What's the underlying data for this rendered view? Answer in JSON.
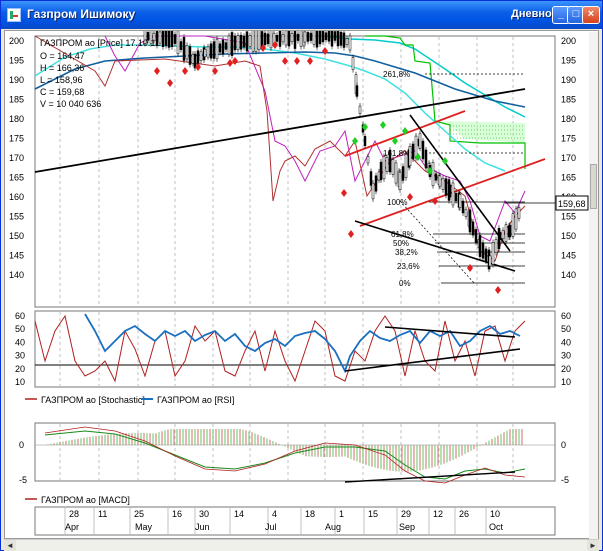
{
  "window": {
    "title": "Газпром Ишимоку",
    "period": "Дневной",
    "minimize_glyph": "_",
    "maximize_glyph": "□",
    "close_glyph": "×"
  },
  "ohlc": {
    "header": "ГАЗПРОМ ао [Price] 17.10.11",
    "open": "O = 164,47",
    "high": "H = 166,36",
    "low": "L = 158,96",
    "close": "C = 159,68",
    "volume": "V = 10 040 636"
  },
  "fib_labels": [
    "261,8%",
    "161,8%",
    "100%",
    "61,8%",
    "50%",
    "38,2%",
    "23,6%",
    "0%"
  ],
  "last_price": "159,68",
  "legend": {
    "stochastic": "ГАЗПРОМ ао [Stochastic]",
    "rsi": "ГАЗПРОМ ао [RSI]",
    "macd": "ГАЗПРОМ ао [MACD]"
  },
  "colors": {
    "stochastic": "#b02020",
    "rsi": "#1a6fc0",
    "macd_signal": "#1a8a1a",
    "fib_upper": "#00b000",
    "trend_red": "#e02020",
    "candle": "#000000",
    "cloud_green": "#00c000",
    "cloud_cyan": "#00cccc",
    "kijun": "#1060a0",
    "tenkan": "#c020c0"
  },
  "chart_data": [
    {
      "type": "line",
      "price_axis_ticks": [
        "200",
        "195",
        "190",
        "185",
        "180",
        "175",
        "170",
        "165",
        "160",
        "155",
        "150",
        "145",
        "140"
      ],
      "ylim": [
        137,
        202
      ],
      "series_labels": [
        "ГАЗПРОМ ао [Price]"
      ],
      "last_value": 159.68
    },
    {
      "type": "line",
      "oscillator_ticks": [
        "60",
        "50",
        "40",
        "30",
        "20",
        "10"
      ],
      "ylim": [
        5,
        62
      ],
      "series": [
        {
          "name": "ГАЗПРОМ ао [Stochastic]"
        },
        {
          "name": "ГАЗПРОМ ао [RSI]"
        }
      ],
      "reference_level": 20
    },
    {
      "type": "bar",
      "macd_ticks": [
        "0",
        "-5"
      ],
      "ylim": [
        -6,
        2
      ],
      "series": [
        {
          "name": "ГАЗПРОМ ао [MACD]"
        }
      ]
    },
    {
      "type": "table",
      "date_ticks": [
        "28",
        "11",
        "25",
        "16",
        "30",
        "14",
        "4",
        "18",
        "1",
        "15",
        "29",
        "12",
        "26",
        "10"
      ],
      "months": [
        "Apr",
        "May",
        "Jun",
        "Jul",
        "Aug",
        "Sep",
        "Oct"
      ]
    }
  ]
}
